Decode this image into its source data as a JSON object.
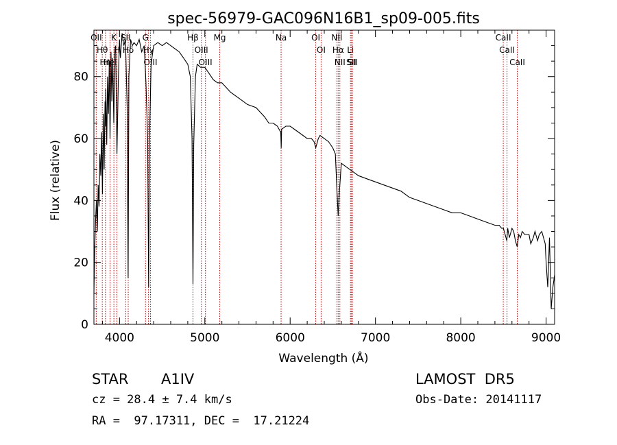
{
  "chart_data": {
    "type": "line",
    "title": "spec-56979-GAC096N16B1_sp09-005.fits",
    "xlabel": "Wavelength (Å)",
    "ylabel": "Flux (relative)",
    "xlim": [
      3700,
      9100
    ],
    "ylim": [
      0,
      95
    ],
    "xticks": [
      4000,
      5000,
      6000,
      7000,
      8000,
      9000
    ],
    "yticks": [
      0,
      20,
      40,
      60,
      80
    ],
    "grid": false,
    "series": [
      {
        "x": [
          3700,
          3710,
          3720,
          3730,
          3740,
          3750,
          3760,
          3770,
          3780,
          3790,
          3800,
          3810,
          3820,
          3830,
          3835,
          3840,
          3850,
          3860,
          3870,
          3880,
          3889,
          3900,
          3910,
          3920,
          3933,
          3945,
          3955,
          3970,
          3985,
          4000,
          4010,
          4030,
          4050,
          4070,
          4090,
          4101,
          4110,
          4130,
          4150,
          4170,
          4200,
          4230,
          4260,
          4290,
          4310,
          4330,
          4341,
          4350,
          4370,
          4400,
          4450,
          4500,
          4550,
          4600,
          4650,
          4700,
          4750,
          4800,
          4830,
          4850,
          4861,
          4870,
          4890,
          4910,
          4950,
          5000,
          5050,
          5100,
          5150,
          5200,
          5300,
          5400,
          5500,
          5600,
          5700,
          5750,
          5800,
          5850,
          5890,
          5895,
          5900,
          5950,
          6000,
          6050,
          6100,
          6150,
          6200,
          6250,
          6280,
          6300,
          6330,
          6350,
          6400,
          6450,
          6500,
          6530,
          6550,
          6563,
          6575,
          6600,
          6650,
          6700,
          6750,
          6800,
          6900,
          7000,
          7100,
          7200,
          7300,
          7400,
          7500,
          7600,
          7700,
          7800,
          7900,
          8000,
          8100,
          8200,
          8300,
          8400,
          8450,
          8480,
          8500,
          8520,
          8540,
          8550,
          8570,
          8600,
          8620,
          8640,
          8662,
          8680,
          8700,
          8720,
          8750,
          8800,
          8820,
          8850,
          8870,
          8900,
          8920,
          8950,
          8970,
          8990,
          9000,
          9020,
          9040,
          9060,
          9080,
          9100
        ],
        "y": [
          10,
          25,
          34,
          40,
          30,
          45,
          38,
          55,
          48,
          62,
          42,
          68,
          50,
          72,
          64,
          76,
          58,
          80,
          68,
          85,
          60,
          88,
          72,
          86,
          65,
          88,
          90,
          55,
          78,
          92,
          86,
          94,
          90,
          92,
          70,
          15,
          80,
          92,
          90,
          91,
          90,
          92,
          88,
          90,
          78,
          60,
          12,
          58,
          84,
          90,
          91,
          90,
          91,
          90,
          89,
          88,
          86,
          84,
          80,
          60,
          13,
          58,
          80,
          84,
          83,
          83,
          81,
          79,
          78,
          78,
          75,
          73,
          71,
          70,
          67,
          65,
          65,
          64,
          62,
          57,
          63,
          64,
          64,
          63,
          62,
          61,
          60,
          60,
          59,
          57,
          60,
          61,
          60,
          59,
          57,
          55,
          42,
          35,
          42,
          52,
          51,
          50,
          49,
          48,
          47,
          46,
          45,
          44,
          43,
          41,
          40,
          39,
          38,
          37,
          36,
          36,
          35,
          34,
          33,
          32,
          32,
          31,
          31,
          29,
          27,
          31,
          28,
          31,
          30,
          27,
          25,
          29,
          28,
          30,
          29,
          29,
          26,
          28,
          30,
          27,
          29,
          30,
          28,
          26,
          20,
          12,
          28,
          5,
          12,
          16
        ]
      }
    ],
    "line_ids": [
      {
        "name": "OII",
        "wavelength": 3727
      },
      {
        "name": "Hθ",
        "wavelength": 3798
      },
      {
        "name": "Hη",
        "wavelength": 3835
      },
      {
        "name": "HeI",
        "wavelength": 3889
      },
      {
        "name": "K",
        "wavelength": 3934
      },
      {
        "name": "H",
        "wavelength": 3969
      },
      {
        "name": "SII",
        "wavelength": 4072
      },
      {
        "name": "Hδ",
        "wavelength": 4102
      },
      {
        "name": "G",
        "wavelength": 4305
      },
      {
        "name": "Hγ",
        "wavelength": 4340
      },
      {
        "name": "OIII",
        "wavelength": 4363
      },
      {
        "name": "Hβ",
        "wavelength": 4861
      },
      {
        "name": "OIII",
        "wavelength": 4959
      },
      {
        "name": "OIII",
        "wavelength": 5007
      },
      {
        "name": "Mg",
        "wavelength": 5175
      },
      {
        "name": "Na",
        "wavelength": 5894
      },
      {
        "name": "OI",
        "wavelength": 6300
      },
      {
        "name": "OI",
        "wavelength": 6363
      },
      {
        "name": "NII",
        "wavelength": 6548
      },
      {
        "name": "Hα",
        "wavelength": 6563
      },
      {
        "name": "NII",
        "wavelength": 6583
      },
      {
        "name": "Li",
        "wavelength": 6707
      },
      {
        "name": "SII",
        "wavelength": 6716
      },
      {
        "name": "SII",
        "wavelength": 6731
      },
      {
        "name": "CaII",
        "wavelength": 8498
      },
      {
        "name": "CaII",
        "wavelength": 8542
      },
      {
        "name": "CaII",
        "wavelength": 8662
      }
    ]
  },
  "info": {
    "object_class": "STAR",
    "subclass": "A1IV",
    "survey": "LAMOST  DR5",
    "redshift": "cz = 28.4 ± 7.4 km/s",
    "obs_date": "Obs-Date: 20141117",
    "coords": "RA =  97.17311, DEC =  17.21224"
  },
  "colors": {
    "line_marker": "#cc0000",
    "spectrum": "#000000"
  }
}
